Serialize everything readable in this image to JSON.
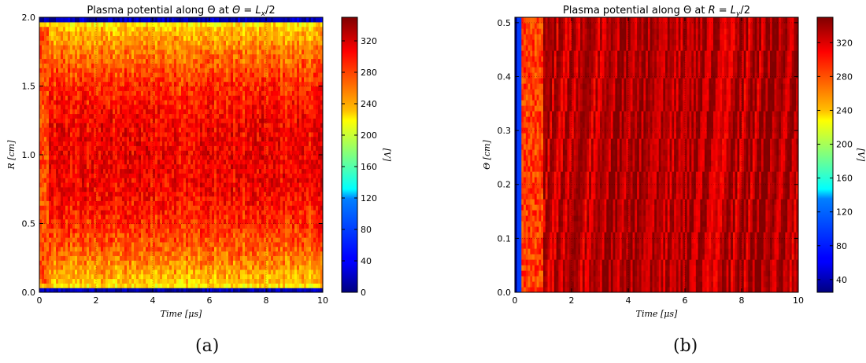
{
  "chart_data": [
    {
      "type": "heatmap",
      "title": "Plasma potential along Θ at Θ = L_x/2",
      "title_prefix": "Plasma potential along Θ at ",
      "title_math": "Θ = L",
      "title_sub": "x",
      "title_suffix": "/2",
      "xlabel": "Time [μs]",
      "ylabel": "R [cm]",
      "xlim": [
        0,
        10
      ],
      "ylim": [
        0,
        2.0
      ],
      "xticks": [
        "0",
        "2",
        "4",
        "6",
        "8",
        "10"
      ],
      "yticks": [
        "0.0",
        "0.5",
        "1.0",
        "1.5",
        "2.0"
      ],
      "colorbar_label": "[V]",
      "colorbar_range": [
        0,
        350
      ],
      "colorbar_ticks": [
        "0",
        "40",
        "80",
        "120",
        "160",
        "200",
        "240",
        "280",
        "320"
      ],
      "colormap": "jet",
      "grid": true,
      "description_values": {
        "edge_value_V": 0,
        "peak_value_V": 345,
        "peak_R_cm": 1.0,
        "transient_end_us": 0.3
      },
      "caption": "(a)"
    },
    {
      "type": "heatmap",
      "title": "Plasma potential along Θ at R = L_y/2",
      "title_prefix": "Plasma potential along Θ at ",
      "title_math": "R = L",
      "title_sub": "y",
      "title_suffix": "/2",
      "xlabel": "Time [μs]",
      "ylabel": "Θ [cm]",
      "xlim": [
        0,
        10
      ],
      "ylim": [
        0,
        0.51
      ],
      "xticks": [
        "0",
        "2",
        "4",
        "6",
        "8",
        "10"
      ],
      "yticks": [
        "0.0",
        "0.1",
        "0.2",
        "0.3",
        "0.4",
        "0.5"
      ],
      "colorbar_label": "[V]",
      "colorbar_range": [
        25,
        350
      ],
      "colorbar_ticks": [
        "40",
        "80",
        "120",
        "160",
        "200",
        "240",
        "280",
        "320"
      ],
      "colormap": "jet",
      "grid": true,
      "description_values": {
        "initial_value_V": 25,
        "saturated_value_V": 330,
        "transient_end_us": 1.0
      },
      "caption": "(b)"
    }
  ]
}
